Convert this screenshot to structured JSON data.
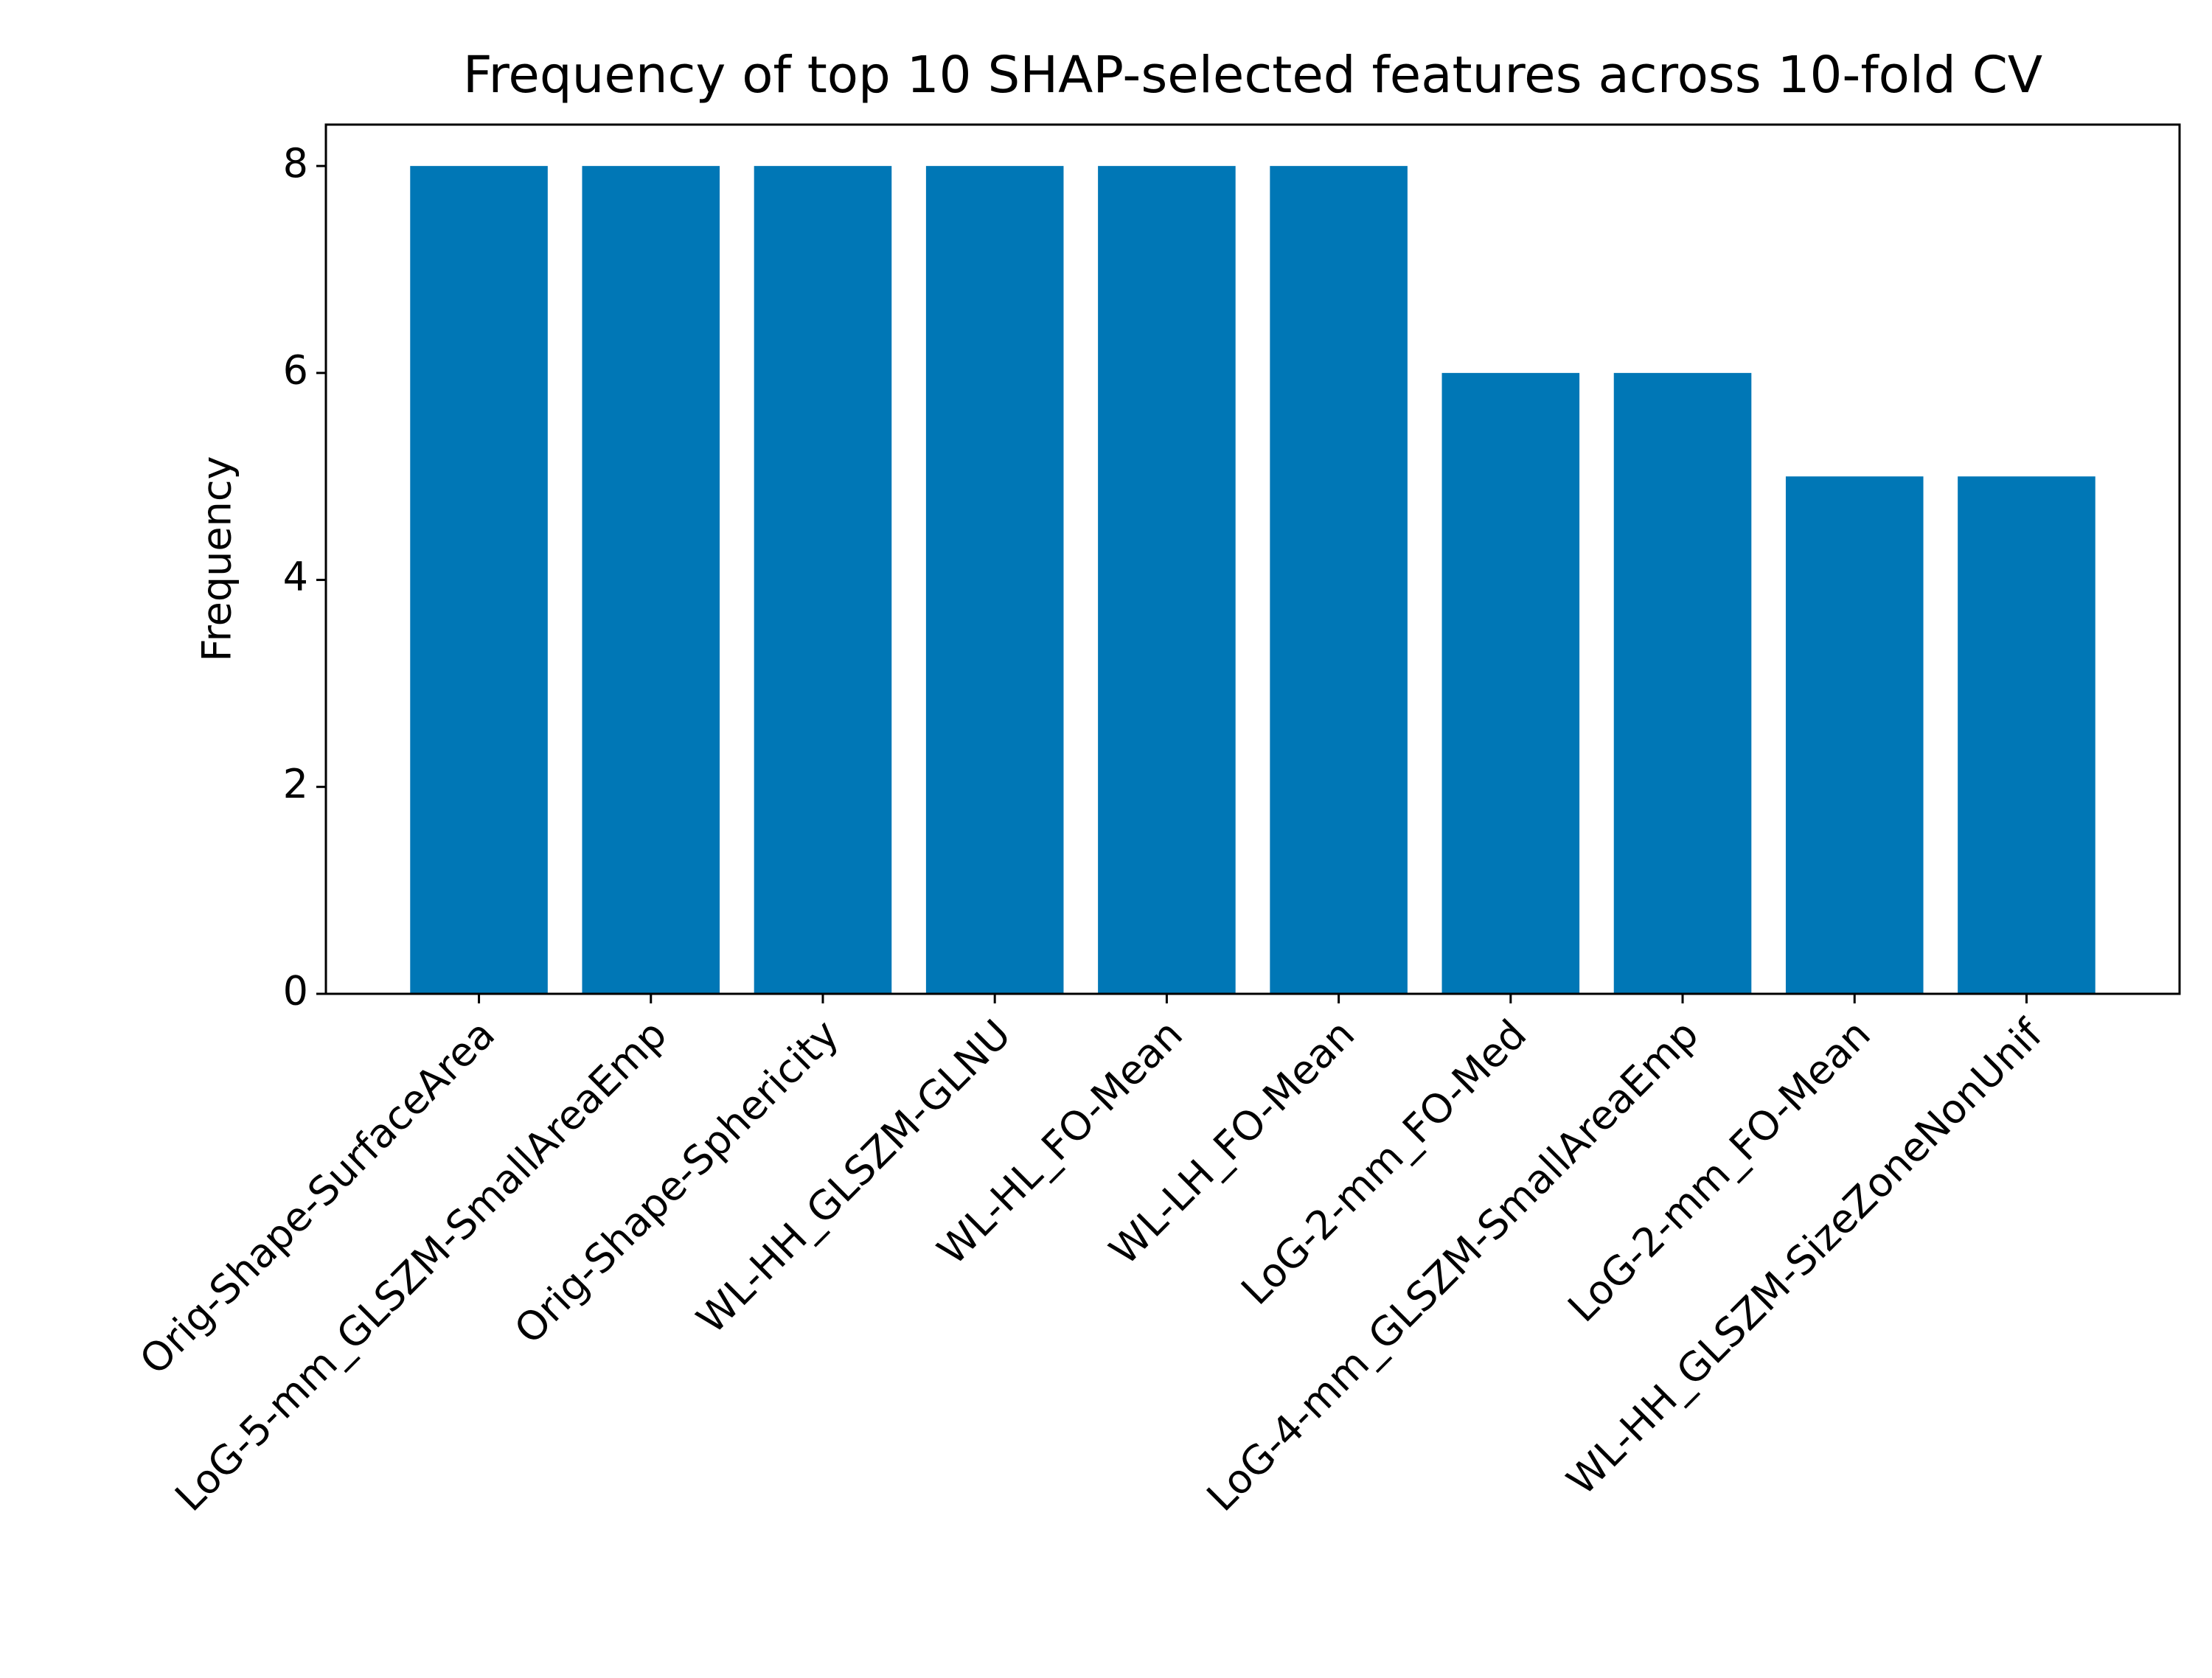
{
  "chart_data": {
    "type": "bar",
    "title": "Frequency of top 10 SHAP-selected features across 10-fold CV",
    "y_label": "Frequency",
    "categories": [
      "Orig-Shape-SurfaceArea",
      "LoG-5-mm_GLSZM-SmallAreaEmp",
      "Orig-Shape-Sphericity",
      "WL-HH_GLSZM-GLNU",
      "WL-HL_FO-Mean",
      "WL-LH_FO-Mean",
      "LoG-2-mm_FO-Med",
      "LoG-4-mm_GLSZM-SmallAreaEmp",
      "LoG-2-mm_FO-Mean",
      "WL-HH_GLSZM-SizeZoneNonUnif"
    ],
    "values": [
      8,
      8,
      8,
      8,
      8,
      8,
      6,
      6,
      5,
      5
    ],
    "color": "#0077b6",
    "ylim": [
      0,
      8.4
    ],
    "yticks": [
      0,
      2,
      4,
      6,
      8
    ],
    "grid": false
  }
}
